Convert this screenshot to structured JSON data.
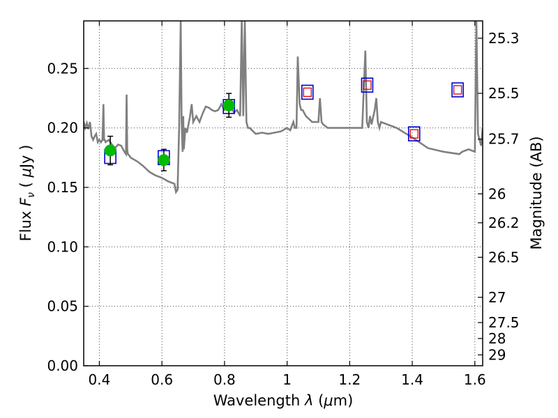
{
  "chart_data": {
    "type": "scatter",
    "xlabel": "Wavelength  λ (μm)",
    "ylabel": "Flux  F_ν  ( μJy )",
    "ylabel_parts": {
      "prefix": "Flux  ",
      "symbol": "F",
      "subscript": "ν",
      "open": "  ( ",
      "mu": "μ",
      "unit": "Jy )"
    },
    "xlabel_parts": {
      "prefix": "Wavelength  ",
      "symbol": "λ",
      "open": " (",
      "mu": "μ",
      "unit": "m)"
    },
    "y2label": "Magnitude (AB)",
    "xlim": [
      0.35,
      1.625
    ],
    "ylim": [
      0.0,
      0.29
    ],
    "grid": true,
    "x_ticks": [
      0.4,
      0.6,
      0.8,
      1.0,
      1.2,
      1.4,
      1.6
    ],
    "x_tick_labels": [
      "0.4",
      "0.6",
      "0.8",
      "1",
      "1.2",
      "1.4",
      "1.6"
    ],
    "y_ticks": [
      0.0,
      0.05,
      0.1,
      0.15,
      0.2,
      0.25
    ],
    "y_tick_labels": [
      "0.00",
      "0.05",
      "0.10",
      "0.15",
      "0.20",
      "0.25"
    ],
    "mag_ticks": [
      25.3,
      25.5,
      25.7,
      26,
      26.2,
      26.5,
      27,
      27.5,
      28,
      29
    ],
    "mag_tick_labels": [
      "25.3",
      "25.5",
      "25.7",
      "26",
      "26.2",
      "26.5",
      "27",
      "27.5",
      "28",
      "29"
    ],
    "colors": {
      "spectrum": "#808080",
      "observed": "#00bb00",
      "model_box": "#0000cc",
      "model_inner": "#dd0000",
      "errorbar": "#000000",
      "grid": "#444444"
    },
    "spectrum": {
      "x": [
        0.35,
        0.355,
        0.36,
        0.365,
        0.37,
        0.375,
        0.38,
        0.385,
        0.39,
        0.395,
        0.4,
        0.405,
        0.41,
        0.413,
        0.415,
        0.417,
        0.42,
        0.43,
        0.44,
        0.45,
        0.46,
        0.47,
        0.48,
        0.485,
        0.487,
        0.489,
        0.491,
        0.495,
        0.5,
        0.52,
        0.54,
        0.56,
        0.58,
        0.6,
        0.62,
        0.64,
        0.645,
        0.65,
        0.655,
        0.66,
        0.663,
        0.666,
        0.668,
        0.67,
        0.675,
        0.68,
        0.69,
        0.695,
        0.7,
        0.71,
        0.72,
        0.73,
        0.74,
        0.75,
        0.76,
        0.77,
        0.78,
        0.79,
        0.8,
        0.81,
        0.82,
        0.83,
        0.84,
        0.85,
        0.855,
        0.86,
        0.865,
        0.87,
        0.875,
        0.88,
        0.9,
        0.92,
        0.94,
        0.96,
        0.98,
        1.0,
        1.01,
        1.02,
        1.025,
        1.03,
        1.034,
        1.04,
        1.045,
        1.05,
        1.06,
        1.08,
        1.1,
        1.105,
        1.11,
        1.115,
        1.12,
        1.13,
        1.15,
        1.2,
        1.24,
        1.25,
        1.255,
        1.26,
        1.265,
        1.27,
        1.28,
        1.285,
        1.29,
        1.295,
        1.3,
        1.35,
        1.4,
        1.45,
        1.5,
        1.55,
        1.56,
        1.58,
        1.6,
        1.605,
        1.61,
        1.62,
        1.625
      ],
      "y": [
        0.205,
        0.2,
        0.204,
        0.199,
        0.205,
        0.193,
        0.19,
        0.193,
        0.195,
        0.188,
        0.19,
        0.188,
        0.19,
        0.22,
        0.19,
        0.19,
        0.188,
        0.19,
        0.186,
        0.183,
        0.186,
        0.185,
        0.18,
        0.178,
        0.228,
        0.182,
        0.178,
        0.177,
        0.175,
        0.172,
        0.168,
        0.163,
        0.16,
        0.158,
        0.155,
        0.153,
        0.146,
        0.148,
        0.2,
        0.29,
        0.205,
        0.18,
        0.21,
        0.182,
        0.2,
        0.196,
        0.21,
        0.22,
        0.205,
        0.21,
        0.205,
        0.212,
        0.218,
        0.217,
        0.215,
        0.214,
        0.215,
        0.22,
        0.215,
        0.218,
        0.218,
        0.213,
        0.215,
        0.21,
        0.29,
        0.21,
        0.29,
        0.205,
        0.2,
        0.2,
        0.195,
        0.196,
        0.195,
        0.196,
        0.197,
        0.2,
        0.198,
        0.205,
        0.2,
        0.2,
        0.26,
        0.22,
        0.215,
        0.215,
        0.21,
        0.205,
        0.205,
        0.225,
        0.205,
        0.203,
        0.202,
        0.2,
        0.2,
        0.2,
        0.2,
        0.265,
        0.205,
        0.2,
        0.21,
        0.203,
        0.215,
        0.225,
        0.205,
        0.2,
        0.205,
        0.2,
        0.192,
        0.183,
        0.18,
        0.178,
        0.18,
        0.182,
        0.18,
        0.29,
        0.195,
        0.185,
        0.2
      ]
    },
    "observed": [
      {
        "x": 0.435,
        "y": 0.181,
        "yerr": 0.012
      },
      {
        "x": 0.606,
        "y": 0.173,
        "yerr": 0.009
      },
      {
        "x": 0.814,
        "y": 0.219,
        "yerr": 0.01
      }
    ],
    "model": [
      {
        "x": 0.435,
        "y": 0.176,
        "inner": false
      },
      {
        "x": 0.606,
        "y": 0.175,
        "inner": false
      },
      {
        "x": 0.814,
        "y": 0.218,
        "inner": false
      },
      {
        "x": 1.065,
        "y": 0.23,
        "inner": true
      },
      {
        "x": 1.256,
        "y": 0.236,
        "inner": true
      },
      {
        "x": 1.406,
        "y": 0.195,
        "inner": true
      },
      {
        "x": 1.545,
        "y": 0.232,
        "inner": true
      }
    ]
  }
}
